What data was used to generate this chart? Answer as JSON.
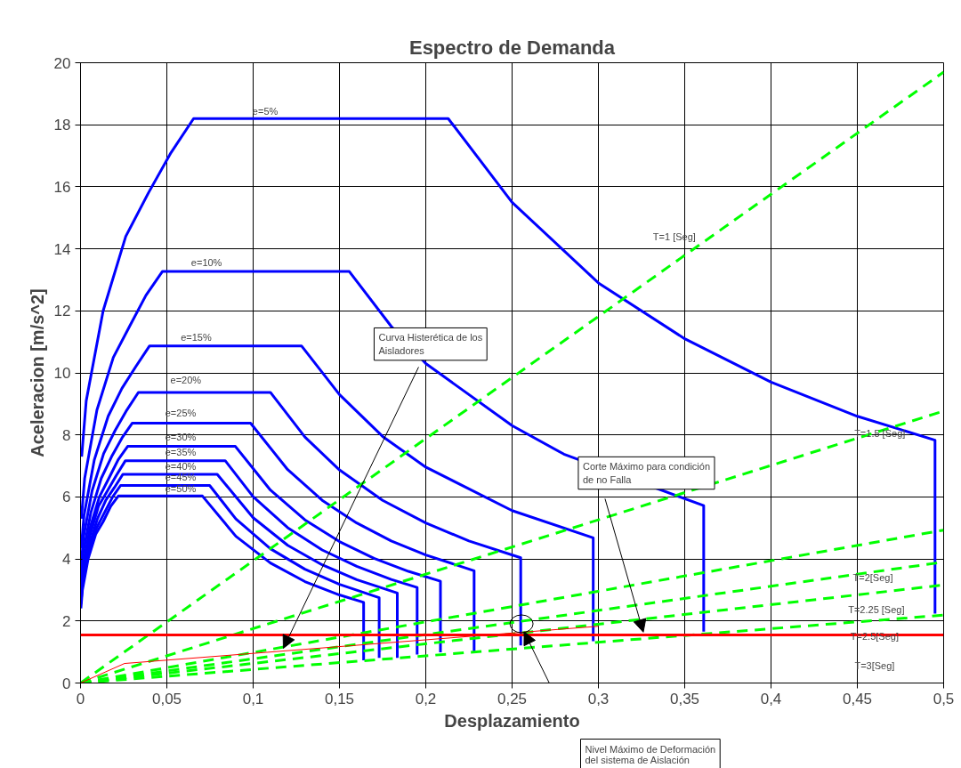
{
  "chart_data": {
    "type": "line",
    "title": "Espectro de Demanda",
    "xlabel": "Desplazamiento",
    "ylabel": "Aceleracion [m/s^2]",
    "xlim": [
      0,
      0.5
    ],
    "ylim": [
      0,
      20
    ],
    "xticks": [
      0,
      {
        "value": 0.05,
        "label": "0,05"
      },
      {
        "value": 0.1,
        "label": "0,1"
      },
      {
        "value": 0.15,
        "label": "0,15"
      },
      {
        "value": 0.2,
        "label": "0,2"
      },
      {
        "value": 0.25,
        "label": "0,25"
      },
      {
        "value": 0.3,
        "label": "0,3"
      },
      {
        "value": 0.35,
        "label": "0,35"
      },
      {
        "value": 0.4,
        "label": "0,4"
      },
      {
        "value": 0.45,
        "label": "0,45"
      },
      {
        "value": 0.5,
        "label": "0,5"
      }
    ],
    "yticks": [
      0,
      2,
      4,
      6,
      8,
      10,
      12,
      14,
      16,
      18,
      20
    ],
    "grid": true,
    "series": [
      {
        "color": "#0000ff",
        "line_style": "solid",
        "x": [
          0.00066,
          0.0033,
          0.0131,
          0.0262,
          0.0393,
          0.0524,
          0.0655,
          0.213,
          0.25,
          0.3,
          0.35,
          0.4,
          0.45,
          0.495,
          0.495
        ],
        "values": [
          7.3,
          9.1,
          12.0,
          14.4,
          15.8,
          17.1,
          18.2,
          18.2,
          15.5,
          12.9,
          11.1,
          9.7,
          8.6,
          7.83,
          2.24
        ]
      },
      {
        "color": "#0000ff",
        "line_style": "solid",
        "x": [
          0.00047,
          0.0024,
          0.0095,
          0.019,
          0.0284,
          0.0379,
          0.0474,
          0.1557,
          0.18,
          0.2,
          0.25,
          0.28,
          0.361,
          0.361
        ],
        "values": [
          5.3,
          6.6,
          8.8,
          10.5,
          11.5,
          12.5,
          13.27,
          13.27,
          11.5,
          10.3,
          8.3,
          7.38,
          5.72,
          1.66
        ]
      },
      {
        "color": "#0000ff",
        "line_style": "solid",
        "x": [
          0.0004,
          0.002,
          0.008,
          0.016,
          0.024,
          0.032,
          0.04,
          0.128,
          0.15,
          0.175,
          0.2,
          0.25,
          0.297,
          0.297
        ],
        "values": [
          4.35,
          5.4,
          7.2,
          8.6,
          9.5,
          10.2,
          10.87,
          10.87,
          9.3,
          7.95,
          6.96,
          5.56,
          4.68,
          1.35
        ]
      },
      {
        "color": "#0000ff",
        "line_style": "solid",
        "x": [
          0.00034,
          0.0017,
          0.0067,
          0.0134,
          0.0201,
          0.0268,
          0.0335,
          0.11,
          0.13,
          0.15,
          0.175,
          0.2,
          0.225,
          0.255,
          0.255
        ],
        "values": [
          3.75,
          4.7,
          6.2,
          7.4,
          8.15,
          8.8,
          9.37,
          9.37,
          7.93,
          6.87,
          5.89,
          5.16,
          4.58,
          4.04,
          1.21
        ]
      },
      {
        "color": "#0000ff",
        "line_style": "solid",
        "x": [
          0.0003,
          0.0015,
          0.006,
          0.012,
          0.018,
          0.024,
          0.03,
          0.0985,
          0.12,
          0.14,
          0.16,
          0.18,
          0.2,
          0.228,
          0.228
        ],
        "values": [
          3.35,
          4.2,
          5.5,
          6.6,
          7.3,
          7.9,
          8.38,
          8.38,
          6.88,
          5.89,
          5.16,
          4.58,
          4.13,
          3.62,
          1.01
        ]
      },
      {
        "color": "#0000ff",
        "line_style": "solid",
        "x": [
          0.00027,
          0.0014,
          0.0055,
          0.0109,
          0.0164,
          0.0218,
          0.0273,
          0.0897,
          0.11,
          0.13,
          0.15,
          0.17,
          0.19,
          0.2085,
          0.2085
        ],
        "values": [
          3.05,
          3.8,
          5.0,
          6.0,
          6.6,
          7.2,
          7.63,
          7.63,
          6.22,
          5.26,
          4.56,
          4.02,
          3.6,
          3.28,
          0.99
        ]
      },
      {
        "color": "#0000ff",
        "line_style": "solid",
        "x": [
          0.00026,
          0.0013,
          0.0052,
          0.0104,
          0.0156,
          0.0208,
          0.026,
          0.0838,
          0.1,
          0.12,
          0.14,
          0.16,
          0.18,
          0.195,
          0.195
        ],
        "values": [
          2.87,
          3.6,
          4.7,
          5.7,
          6.2,
          6.7,
          7.17,
          7.17,
          6.01,
          5.01,
          4.29,
          3.76,
          3.34,
          3.08,
          0.92
        ]
      },
      {
        "color": "#0000ff",
        "line_style": "solid",
        "x": [
          0.00025,
          0.0012,
          0.0049,
          0.0098,
          0.0147,
          0.0196,
          0.0245,
          0.0792,
          0.1,
          0.12,
          0.14,
          0.16,
          0.1835,
          0.1835
        ],
        "values": [
          2.69,
          3.4,
          4.4,
          5.3,
          5.9,
          6.3,
          6.73,
          6.73,
          5.33,
          4.44,
          3.81,
          3.33,
          2.9,
          0.81
        ]
      },
      {
        "color": "#0000ff",
        "line_style": "solid",
        "x": [
          0.00023,
          0.0012,
          0.0046,
          0.0093,
          0.0139,
          0.0186,
          0.0232,
          0.0748,
          0.09,
          0.11,
          0.13,
          0.15,
          0.173,
          0.173
        ],
        "values": [
          2.55,
          3.2,
          4.2,
          5.0,
          5.5,
          6.0,
          6.37,
          6.37,
          5.29,
          4.33,
          3.67,
          3.18,
          2.75,
          0.81
        ]
      },
      {
        "color": "#0000ff",
        "line_style": "solid",
        "x": [
          0.00022,
          0.0011,
          0.0044,
          0.0088,
          0.0131,
          0.0175,
          0.0219,
          0.0706,
          0.09,
          0.11,
          0.13,
          0.15,
          0.164,
          0.164
        ],
        "values": [
          2.41,
          3.0,
          4.0,
          4.8,
          5.2,
          5.7,
          6.03,
          6.03,
          4.73,
          3.87,
          3.27,
          2.84,
          2.6,
          0.73
        ]
      },
      {
        "color": "#00ff00",
        "line_style": "dashed",
        "x": [
          0,
          0.5
        ],
        "values": [
          0,
          19.7
        ]
      },
      {
        "color": "#00ff00",
        "line_style": "dashed",
        "x": [
          0,
          0.5
        ],
        "values": [
          0,
          8.77
        ]
      },
      {
        "color": "#00ff00",
        "line_style": "dashed",
        "x": [
          0,
          0.5
        ],
        "values": [
          0,
          4.93
        ]
      },
      {
        "color": "#00ff00",
        "line_style": "dashed",
        "x": [
          0,
          0.5
        ],
        "values": [
          0,
          3.9
        ]
      },
      {
        "color": "#00ff00",
        "line_style": "dashed",
        "x": [
          0,
          0.5
        ],
        "values": [
          0,
          3.16
        ]
      },
      {
        "color": "#00ff00",
        "line_style": "dashed",
        "x": [
          0,
          0.5
        ],
        "values": [
          0,
          2.19
        ]
      },
      {
        "color": "#ff0000",
        "line_style": "solid",
        "x": [
          0,
          0.0255,
          0.3
        ],
        "values": [
          0,
          0.63,
          1.83
        ]
      }
    ],
    "ref_lines": [
      {
        "axis": "y",
        "value": 1.55,
        "color": "#ff0000"
      }
    ],
    "annotations": [
      "e=5%",
      "e=10%",
      "e=15%",
      "e=20%",
      "e=25%",
      "e=30%",
      "e=35%",
      "e=40%",
      "e=45%",
      "e=50%",
      "T=1 [Seg]",
      "T=1.5 [Seg]",
      "T=2[Seg]",
      "T=2.25 [Seg]",
      "T=2.5[Seg]",
      "T=3[Seg]",
      {
        "text": "Curva Histerética de los Aisladores",
        "x": 0.1175,
        "y": 1.12
      },
      "Corte Máximo para condición de no Falla",
      "Nivel Máximo de Deformación del sistema de Aislación"
    ]
  }
}
